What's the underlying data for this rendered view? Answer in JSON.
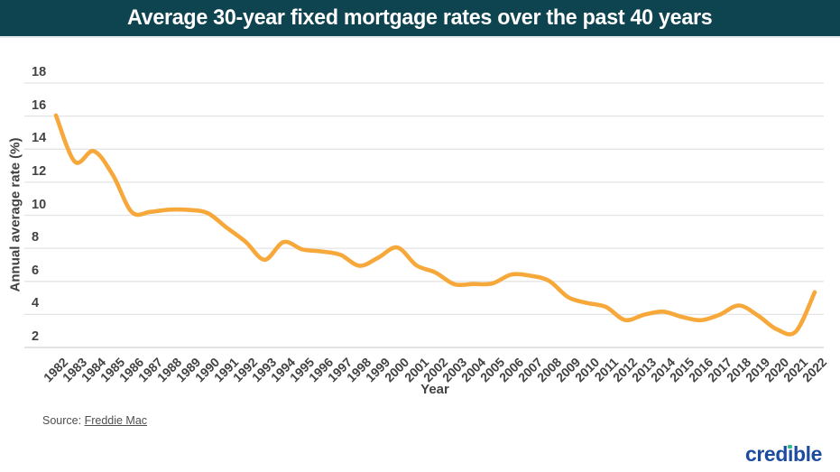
{
  "header": {
    "title": "Average 30-year fixed mortgage rates over the past 40 years",
    "bg_color": "#0E4450",
    "text_color": "#FFFFFF"
  },
  "chart_data": {
    "type": "line",
    "title": "Average 30-year fixed mortgage rates over the past 40 years",
    "xlabel": "Year",
    "ylabel": "Annual average rate (%)",
    "x": [
      1982,
      1983,
      1984,
      1985,
      1986,
      1987,
      1988,
      1989,
      1990,
      1991,
      1992,
      1993,
      1994,
      1995,
      1996,
      1997,
      1998,
      1999,
      2000,
      2001,
      2002,
      2003,
      2004,
      2005,
      2006,
      2007,
      2008,
      2009,
      2010,
      2011,
      2012,
      2013,
      2014,
      2015,
      2016,
      2017,
      2018,
      2019,
      2020,
      2021,
      2022
    ],
    "series": [
      {
        "name": "Average 30-year fixed mortgage rate (%)",
        "color": "#F7A83A",
        "values": [
          16.04,
          13.24,
          13.88,
          12.43,
          10.19,
          10.21,
          10.34,
          10.32,
          10.13,
          9.25,
          8.39,
          7.31,
          8.38,
          7.93,
          7.81,
          7.6,
          6.94,
          7.44,
          8.05,
          6.97,
          6.54,
          5.83,
          5.84,
          5.87,
          6.41,
          6.34,
          6.03,
          5.04,
          4.69,
          4.45,
          3.66,
          3.98,
          4.17,
          3.85,
          3.65,
          3.99,
          4.54,
          3.94,
          3.1,
          2.96,
          5.34
        ]
      }
    ],
    "ylim": [
      2,
      18
    ],
    "yticks": [
      2,
      4,
      6,
      8,
      10,
      12,
      14,
      16,
      18
    ],
    "grid": "horizontal-only",
    "gridline_color": "#E4E4E4",
    "axis_line_color": "#D2D2D2",
    "tick_text_color": "#424242",
    "legend": "none",
    "smoothed": true
  },
  "footer": {
    "source_prefix": "Source:",
    "source_link": "Freddie Mac",
    "logo_pre": "cred",
    "logo_i": "ı",
    "logo_post": "ble",
    "logo_full_text": "credible",
    "logo_color": "#1B4C9F",
    "logo_dot_color": "#2FBD8B"
  }
}
